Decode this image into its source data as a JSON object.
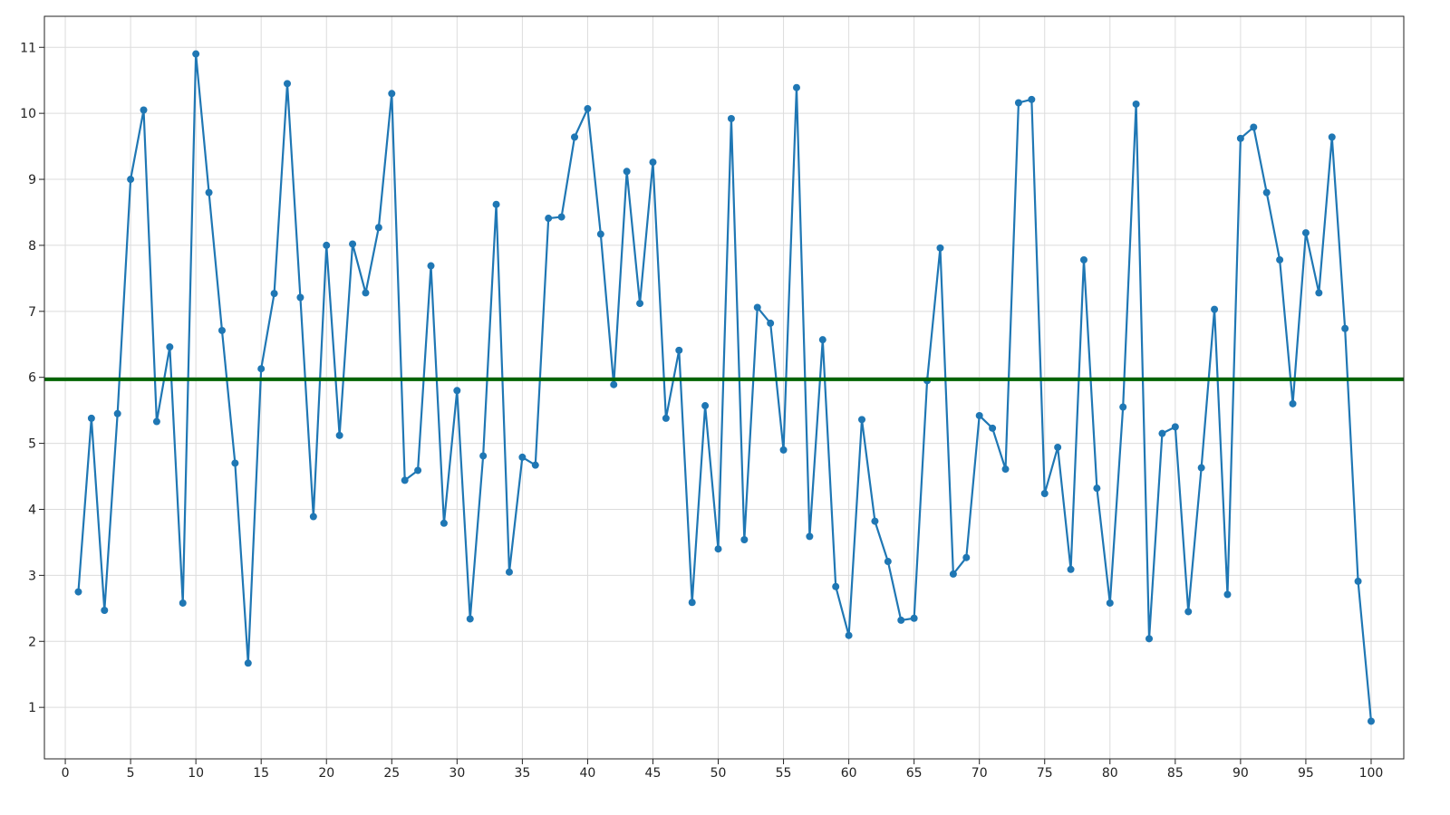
{
  "chart_data": {
    "type": "line",
    "x": [
      1,
      2,
      3,
      4,
      5,
      6,
      7,
      8,
      9,
      10,
      11,
      12,
      13,
      14,
      15,
      16,
      17,
      18,
      19,
      20,
      21,
      22,
      23,
      24,
      25,
      26,
      27,
      28,
      29,
      30,
      31,
      32,
      33,
      34,
      35,
      36,
      37,
      38,
      39,
      40,
      41,
      42,
      43,
      44,
      45,
      46,
      47,
      48,
      49,
      50,
      51,
      52,
      53,
      54,
      55,
      56,
      57,
      58,
      59,
      60,
      61,
      62,
      63,
      64,
      65,
      66,
      67,
      68,
      69,
      70,
      71,
      72,
      73,
      74,
      75,
      76,
      77,
      78,
      79,
      80,
      81,
      82,
      83,
      84,
      85,
      86,
      87,
      88,
      89,
      90,
      91,
      92,
      93,
      94,
      95,
      96,
      97,
      98,
      99,
      100
    ],
    "series": [
      {
        "color": "#1f77b4",
        "values": [
          2.75,
          5.38,
          2.47,
          5.45,
          9.0,
          10.05,
          5.33,
          6.46,
          2.58,
          10.9,
          8.8,
          6.71,
          4.7,
          1.67,
          6.13,
          7.27,
          10.45,
          7.21,
          3.89,
          8.0,
          5.12,
          8.02,
          7.28,
          8.27,
          10.3,
          4.44,
          4.59,
          7.69,
          3.79,
          5.8,
          2.34,
          4.81,
          8.62,
          3.05,
          4.79,
          4.67,
          8.41,
          8.43,
          9.64,
          10.07,
          8.17,
          5.89,
          9.12,
          7.12,
          9.26,
          5.38,
          6.41,
          2.59,
          5.57,
          3.4,
          9.92,
          3.54,
          7.06,
          6.82,
          4.9,
          10.39,
          3.59,
          6.57,
          2.83,
          2.09,
          5.36,
          3.82,
          3.21,
          2.32,
          2.35,
          5.95,
          7.96,
          3.02,
          3.27,
          5.42,
          5.23,
          4.61,
          10.16,
          10.21,
          4.24,
          4.94,
          3.09,
          7.78,
          4.32,
          2.58,
          5.55,
          10.14,
          2.04,
          5.15,
          5.25,
          2.45,
          4.63,
          7.03,
          2.71,
          9.62,
          9.79,
          8.8,
          7.78,
          5.6,
          8.19,
          7.28,
          9.64,
          6.74,
          2.91,
          0.79
        ]
      }
    ],
    "hline": {
      "value": 5.97,
      "color": "#006400"
    },
    "xlim": [
      -1.6,
      102.5
    ],
    "ylim": [
      0.22,
      11.47
    ],
    "xticks": [
      0,
      5,
      10,
      15,
      20,
      25,
      30,
      35,
      40,
      45,
      50,
      55,
      60,
      65,
      70,
      75,
      80,
      85,
      90,
      95,
      100
    ],
    "yticks": [
      1,
      2,
      3,
      4,
      5,
      6,
      7,
      8,
      9,
      10,
      11
    ],
    "grid": true
  }
}
